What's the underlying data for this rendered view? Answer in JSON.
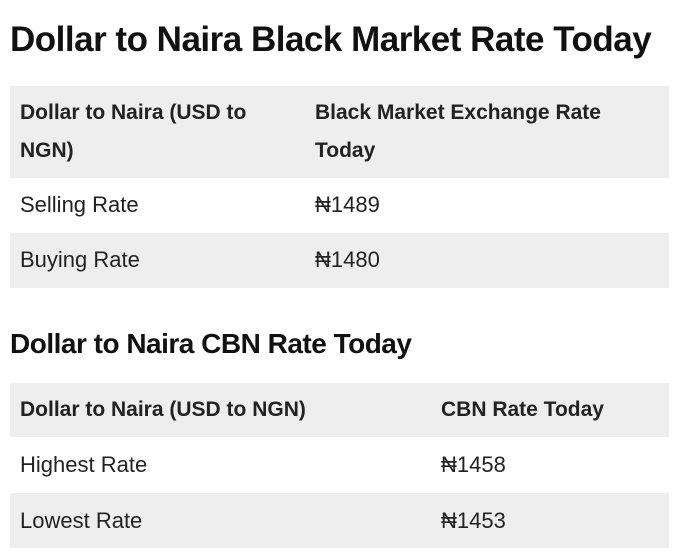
{
  "sections": [
    {
      "title": "Dollar to Naira Black Market Rate Today",
      "table": {
        "header": [
          "Dollar to Naira (USD to NGN)",
          "Black Market Exchange Rate Today"
        ],
        "rows": [
          [
            "Selling Rate",
            "₦1489"
          ],
          [
            "Buying Rate",
            "₦1480"
          ]
        ]
      }
    },
    {
      "title": "Dollar to Naira CBN Rate Today",
      "table": {
        "header": [
          "Dollar to Naira (USD to NGN)",
          "CBN Rate Today"
        ],
        "rows": [
          [
            "Highest Rate",
            "₦1458"
          ],
          [
            "Lowest Rate",
            "₦1453"
          ]
        ]
      }
    }
  ]
}
